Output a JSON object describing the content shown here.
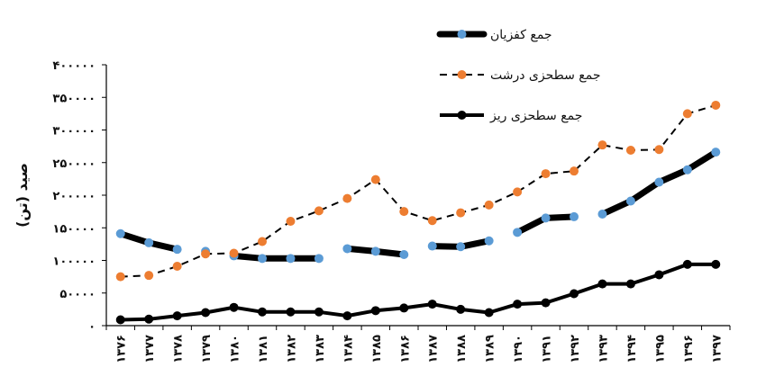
{
  "chart_data": {
    "type": "line",
    "ylabel": "صید (تن)",
    "xlabel": "",
    "title": "",
    "ylim": [
      0,
      400000
    ],
    "y_ticks": [
      "۴۰۰۰۰۰",
      "۳۵۰۰۰۰",
      "۳۰۰۰۰۰",
      "۲۵۰۰۰۰",
      "۲۰۰۰۰۰",
      "۱۵۰۰۰۰",
      "۱۰۰۰۰۰",
      "۵۰۰۰۰",
      "۰"
    ],
    "y_tick_values": [
      400000,
      350000,
      300000,
      250000,
      200000,
      150000,
      100000,
      50000,
      0
    ],
    "categories": [
      "۱۳۷۶",
      "۱۳۷۷",
      "۱۳۷۸",
      "۱۳۷۹",
      "۱۳۸۰",
      "۱۳۸۱",
      "۱۳۸۲",
      "۱۳۸۳",
      "۱۳۸۴",
      "۱۳۸۵",
      "۱۳۸۶",
      "۱۳۸۷",
      "۱۳۸۸",
      "۱۳۸۹",
      "۱۳۹۰",
      "۱۳۹۱",
      "۱۳۹۲",
      "۱۳۹۳",
      "۱۳۹۴",
      "۱۳۹۵",
      "۱۳۹۶",
      "۱۳۹۷"
    ],
    "grid": false,
    "legend_position": "top-right",
    "series": [
      {
        "name": "جمع کفزیان",
        "color": "#000000",
        "marker_color": "#5B9BD5",
        "style": "thick-segmented",
        "values": [
          141000,
          127000,
          117000,
          114000,
          107000,
          103000,
          103000,
          103000,
          118000,
          114000,
          109000,
          122000,
          121000,
          130000,
          143000,
          165000,
          167000,
          171000,
          191000,
          220000,
          239000,
          266000
        ]
      },
      {
        "name": "جمع سطحزی درشت",
        "color": "#000000",
        "marker_color": "#ED7D31",
        "style": "dashed",
        "values": [
          75000,
          77000,
          91000,
          110000,
          111000,
          129000,
          160000,
          176000,
          195000,
          224000,
          175000,
          161000,
          173000,
          185000,
          205000,
          233000,
          237000,
          277000,
          269000,
          270000,
          325000,
          338000
        ]
      },
      {
        "name": "جمع سطحزی ریز",
        "color": "#000000",
        "marker_color": "#000000",
        "style": "solid",
        "values": [
          9000,
          10000,
          15000,
          20000,
          28000,
          21000,
          21000,
          21000,
          15000,
          23000,
          27000,
          33000,
          25000,
          20000,
          33000,
          35000,
          49000,
          64000,
          64000,
          78000,
          94000,
          94000
        ]
      }
    ]
  }
}
